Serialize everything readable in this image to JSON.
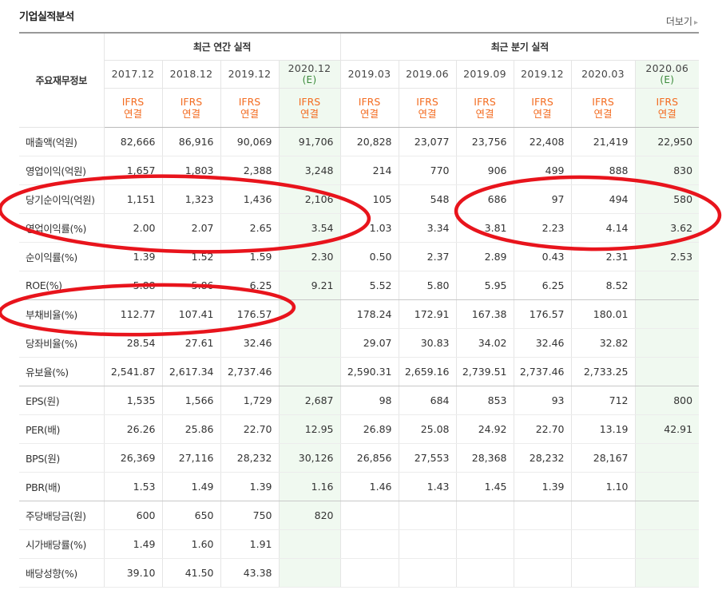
{
  "header": {
    "title": "기업실적분석",
    "more_label": "더보기"
  },
  "table": {
    "row_header_label": "주요재무정보",
    "annual_group_label": "최근 연간 실적",
    "quarter_group_label": "최근 분기 실적",
    "estimate_tag": "(E)",
    "ifrs_label": "IFRS",
    "consolidated_label": "연결",
    "periods": [
      "2017.12",
      "2018.12",
      "2019.12",
      "2020.12",
      "2019.03",
      "2019.06",
      "2019.09",
      "2019.12",
      "2020.03",
      "2020.06"
    ],
    "rows": [
      {
        "label": "매출액(억원)",
        "values": [
          "82,666",
          "86,916",
          "90,069",
          "91,706",
          "20,828",
          "23,077",
          "23,756",
          "22,408",
          "21,419",
          "22,950"
        ]
      },
      {
        "label": "영업이익(억원)",
        "values": [
          "1,657",
          "1,803",
          "2,388",
          "3,248",
          "214",
          "770",
          "906",
          "499",
          "888",
          "830"
        ]
      },
      {
        "label": "당기순이익(억원)",
        "values": [
          "1,151",
          "1,323",
          "1,436",
          "2,106",
          "105",
          "548",
          "686",
          "97",
          "494",
          "580"
        ]
      },
      {
        "label": "영업이익률(%)",
        "values": [
          "2.00",
          "2.07",
          "2.65",
          "3.54",
          "1.03",
          "3.34",
          "3.81",
          "2.23",
          "4.14",
          "3.62"
        ]
      },
      {
        "label": "순이익률(%)",
        "values": [
          "1.39",
          "1.52",
          "1.59",
          "2.30",
          "0.50",
          "2.37",
          "2.89",
          "0.43",
          "2.31",
          "2.53"
        ]
      },
      {
        "label": "ROE(%)",
        "values": [
          "5.88",
          "5.86",
          "6.25",
          "9.21",
          "5.52",
          "5.80",
          "5.95",
          "6.25",
          "8.52",
          ""
        ]
      },
      {
        "label": "부채비율(%)",
        "values": [
          "112.77",
          "107.41",
          "176.57",
          "",
          "178.24",
          "172.91",
          "167.38",
          "176.57",
          "180.01",
          ""
        ]
      },
      {
        "label": "당좌비율(%)",
        "values": [
          "28.54",
          "27.61",
          "32.46",
          "",
          "29.07",
          "30.83",
          "34.02",
          "32.46",
          "32.82",
          ""
        ]
      },
      {
        "label": "유보율(%)",
        "values": [
          "2,541.87",
          "2,617.34",
          "2,737.46",
          "",
          "2,590.31",
          "2,659.16",
          "2,739.51",
          "2,737.46",
          "2,733.25",
          ""
        ]
      },
      {
        "label": "EPS(원)",
        "values": [
          "1,535",
          "1,566",
          "1,729",
          "2,687",
          "98",
          "684",
          "853",
          "93",
          "712",
          "800"
        ]
      },
      {
        "label": "PER(배)",
        "values": [
          "26.26",
          "25.86",
          "22.70",
          "12.95",
          "26.89",
          "25.08",
          "24.92",
          "22.70",
          "13.19",
          "42.91"
        ]
      },
      {
        "label": "BPS(원)",
        "values": [
          "26,369",
          "27,116",
          "28,232",
          "30,126",
          "26,856",
          "27,553",
          "28,368",
          "28,232",
          "28,167",
          ""
        ]
      },
      {
        "label": "PBR(배)",
        "values": [
          "1.53",
          "1.49",
          "1.39",
          "1.16",
          "1.46",
          "1.43",
          "1.45",
          "1.39",
          "1.10",
          ""
        ]
      },
      {
        "label": "주당배당금(원)",
        "values": [
          "600",
          "650",
          "750",
          "820",
          "",
          "",
          "",
          "",
          "",
          ""
        ]
      },
      {
        "label": "시가배당률(%)",
        "values": [
          "1.49",
          "1.60",
          "1.91",
          "",
          "",
          "",
          "",
          "",
          "",
          ""
        ]
      },
      {
        "label": "배당성향(%)",
        "values": [
          "39.10",
          "41.50",
          "43.38",
          "",
          "",
          "",
          "",
          "",
          "",
          ""
        ]
      }
    ]
  },
  "colors": {
    "ifrs": "#f36c21",
    "estimate_text": "#3a8a3a",
    "estimate_bg": "#f0f9f0",
    "annotation": "#e8141c"
  }
}
